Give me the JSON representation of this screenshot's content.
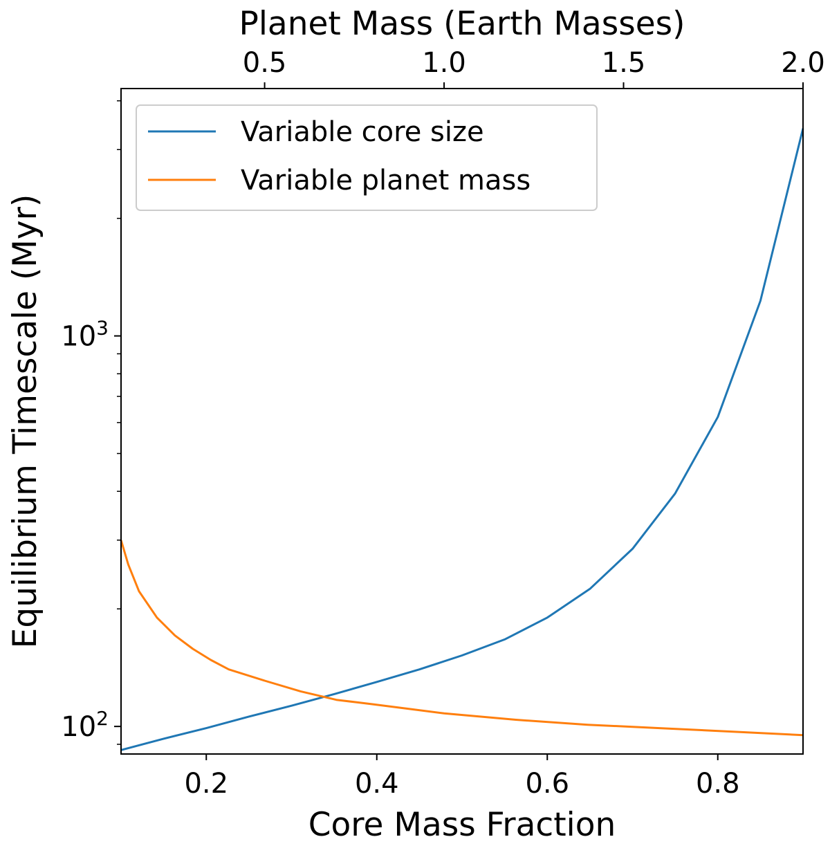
{
  "chart_data": {
    "type": "line",
    "xlabel": "Core Mass Fraction",
    "x2label": "Planet Mass (Earth Masses)",
    "ylabel": "Equilibrium Timescale (Myr)",
    "xlim": [
      0.1,
      0.9
    ],
    "x2lim": [
      0.1,
      2.0
    ],
    "ylim": [
      85,
      4300
    ],
    "yscale": "log",
    "xticks": [
      0.2,
      0.4,
      0.6,
      0.8
    ],
    "xtick_labels": [
      "0.2",
      "0.4",
      "0.6",
      "0.8"
    ],
    "x2ticks": [
      0.5,
      1.0,
      1.5,
      2.0
    ],
    "x2tick_labels": [
      "0.5",
      "1.0",
      "1.5",
      "2.0"
    ],
    "yticks": [
      100,
      1000
    ],
    "ytick_labels": [
      {
        "base": "10",
        "exp": "2"
      },
      {
        "base": "10",
        "exp": "3"
      }
    ],
    "grid": false,
    "legend_position": "top-left",
    "series": [
      {
        "name": "Variable core size",
        "color": "#1f77b4",
        "axis": "bottom",
        "x": [
          0.1,
          0.15,
          0.2,
          0.25,
          0.3,
          0.35,
          0.4,
          0.45,
          0.5,
          0.55,
          0.6,
          0.65,
          0.7,
          0.75,
          0.8,
          0.85,
          0.9
        ],
        "y": [
          87,
          93,
          99,
          106,
          113,
          121,
          130,
          140,
          152,
          167,
          190,
          225,
          285,
          395,
          620,
          1230,
          3400
        ]
      },
      {
        "name": "Variable planet mass",
        "color": "#ff7f0e",
        "axis": "top",
        "x": [
          0.1,
          0.12,
          0.15,
          0.2,
          0.25,
          0.3,
          0.35,
          0.4,
          0.5,
          0.6,
          0.7,
          0.8,
          0.9,
          1.0,
          1.2,
          1.4,
          1.6,
          1.8,
          2.0
        ],
        "y": [
          300,
          260,
          222,
          190,
          171,
          158,
          148,
          140,
          131,
          123,
          117,
          114,
          111,
          108,
          104,
          101,
          99,
          97,
          95
        ]
      }
    ]
  }
}
